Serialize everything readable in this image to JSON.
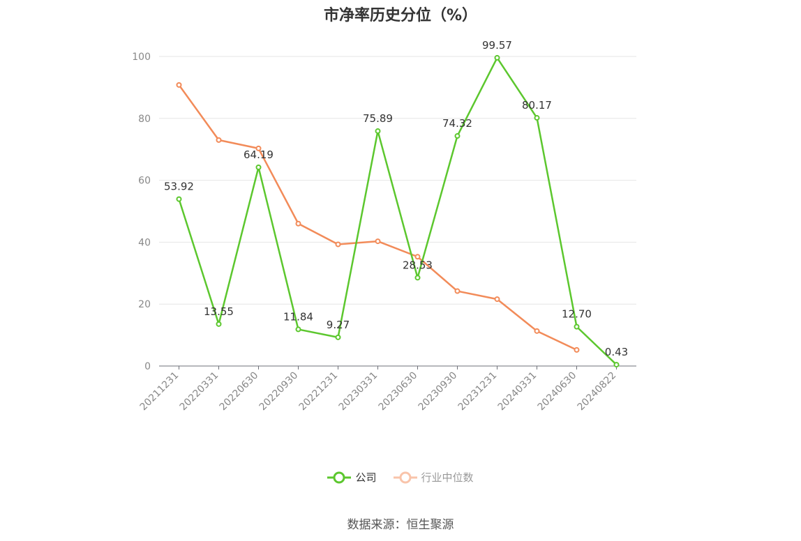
{
  "chart_data": {
    "type": "line",
    "title": "市净率历史分位（%）",
    "categories": [
      "20211231",
      "20220331",
      "20220630",
      "20220930",
      "20221231",
      "20230331",
      "20230630",
      "20230930",
      "20231231",
      "20240331",
      "20240630",
      "20240822"
    ],
    "series": [
      {
        "name": "公司",
        "color": "#5cc72e",
        "values": [
          53.92,
          13.55,
          64.19,
          11.84,
          9.27,
          75.89,
          28.53,
          74.32,
          99.57,
          80.17,
          12.7,
          0.43
        ],
        "labels": [
          "53.92",
          "13.55",
          "64.19",
          "11.84",
          "9.27",
          "75.89",
          "28.53",
          "74.32",
          "99.57",
          "80.17",
          "12.70",
          "0.43"
        ]
      },
      {
        "name": "行业中位数",
        "color": "#f28b59",
        "values": [
          90.8,
          73.0,
          70.3,
          46.0,
          39.3,
          40.3,
          35.3,
          24.2,
          21.6,
          11.3,
          5.2,
          null
        ]
      }
    ],
    "ylim": [
      0,
      100
    ],
    "yticks": [
      0,
      20,
      40,
      60,
      80,
      100
    ],
    "grid": true,
    "legend_position": "bottom-center",
    "source": "数据来源：恒生聚源"
  }
}
